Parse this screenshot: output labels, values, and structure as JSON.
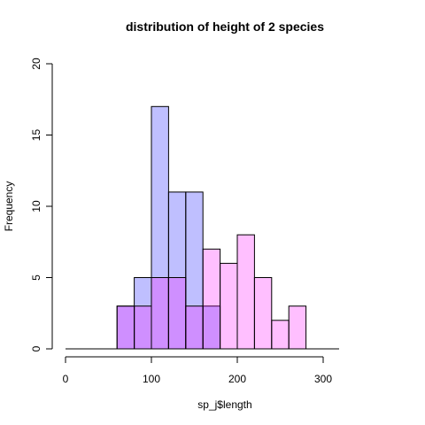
{
  "chart_data": {
    "type": "bar",
    "title": "distribution of height of 2 species",
    "xlabel": "sp_j$length",
    "ylabel": "Frequency",
    "xlim": [
      0,
      320
    ],
    "ylim": [
      0,
      20
    ],
    "x_ticks": [
      0,
      100,
      200,
      300
    ],
    "y_ticks": [
      0,
      5,
      10,
      15,
      20
    ],
    "bin_edges": [
      60,
      80,
      100,
      120,
      140,
      160,
      180,
      200,
      220,
      240,
      260,
      280
    ],
    "grid": false,
    "series": [
      {
        "color": "#0000ff",
        "opacity": 0.25,
        "values": [
          3,
          5,
          17,
          11,
          11,
          3,
          0,
          0,
          0,
          0,
          0
        ]
      },
      {
        "color": "#ff00ff",
        "opacity": 0.25,
        "values": [
          3,
          3,
          5,
          5,
          3,
          7,
          6,
          8,
          5,
          2,
          3
        ]
      }
    ]
  }
}
